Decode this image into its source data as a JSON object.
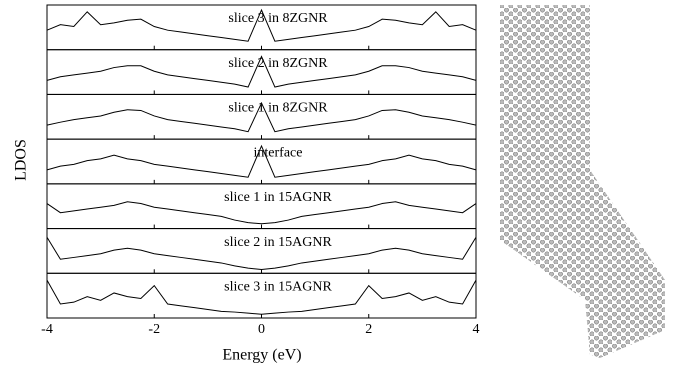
{
  "chart_data": {
    "type": "line",
    "xlabel": "Energy (eV)",
    "ylabel": "LDOS",
    "xlim": [
      -4,
      4
    ],
    "xticks": [
      -4,
      -2,
      0,
      2,
      4
    ],
    "ylim": [
      0,
      1
    ],
    "x": [
      -4,
      -3.75,
      -3.5,
      -3.25,
      -3,
      -2.75,
      -2.5,
      -2.25,
      -2,
      -1.75,
      -1.5,
      -1.25,
      -1,
      -0.75,
      -0.5,
      -0.25,
      0,
      0.25,
      0.5,
      0.75,
      1,
      1.25,
      1.5,
      1.75,
      2,
      2.25,
      2.5,
      2.75,
      3,
      3.25,
      3.5,
      3.75,
      4
    ],
    "series": [
      {
        "name": "slice 3 in 8ZGNR",
        "color": "#000000",
        "values": [
          0.45,
          0.6,
          0.55,
          0.95,
          0.6,
          0.65,
          0.72,
          0.75,
          0.55,
          0.45,
          0.4,
          0.35,
          0.3,
          0.25,
          0.2,
          0.15,
          1.0,
          0.15,
          0.2,
          0.25,
          0.3,
          0.35,
          0.4,
          0.45,
          0.55,
          0.75,
          0.72,
          0.65,
          0.6,
          0.95,
          0.55,
          0.6,
          0.45
        ]
      },
      {
        "name": "slice 2 in 8ZGNR",
        "color": "#000000",
        "values": [
          0.3,
          0.4,
          0.45,
          0.5,
          0.55,
          0.65,
          0.7,
          0.7,
          0.55,
          0.45,
          0.4,
          0.35,
          0.3,
          0.25,
          0.2,
          0.12,
          0.95,
          0.12,
          0.2,
          0.25,
          0.3,
          0.35,
          0.4,
          0.45,
          0.55,
          0.7,
          0.7,
          0.65,
          0.55,
          0.5,
          0.45,
          0.4,
          0.3
        ]
      },
      {
        "name": "slice 1 in 8ZGNR",
        "color": "#000000",
        "values": [
          0.3,
          0.38,
          0.45,
          0.5,
          0.55,
          0.65,
          0.72,
          0.7,
          0.55,
          0.45,
          0.4,
          0.35,
          0.3,
          0.25,
          0.2,
          0.12,
          0.9,
          0.12,
          0.2,
          0.25,
          0.3,
          0.35,
          0.4,
          0.45,
          0.55,
          0.7,
          0.72,
          0.65,
          0.55,
          0.5,
          0.45,
          0.38,
          0.3
        ]
      },
      {
        "name": "interface",
        "color": "#000000",
        "values": [
          0.3,
          0.4,
          0.45,
          0.55,
          0.6,
          0.7,
          0.6,
          0.55,
          0.45,
          0.4,
          0.35,
          0.3,
          0.25,
          0.2,
          0.15,
          0.1,
          0.95,
          0.1,
          0.15,
          0.2,
          0.25,
          0.3,
          0.35,
          0.4,
          0.45,
          0.55,
          0.6,
          0.7,
          0.6,
          0.55,
          0.45,
          0.4,
          0.3
        ]
      },
      {
        "name": "slice 1 in 15AGNR",
        "color": "#000000",
        "values": [
          0.6,
          0.35,
          0.4,
          0.45,
          0.5,
          0.55,
          0.65,
          0.6,
          0.5,
          0.45,
          0.4,
          0.35,
          0.3,
          0.25,
          0.15,
          0.08,
          0.05,
          0.08,
          0.15,
          0.25,
          0.3,
          0.35,
          0.4,
          0.45,
          0.5,
          0.6,
          0.65,
          0.55,
          0.5,
          0.45,
          0.4,
          0.35,
          0.6
        ]
      },
      {
        "name": "slice 2 in 15AGNR",
        "color": "#000000",
        "values": [
          0.9,
          0.3,
          0.35,
          0.4,
          0.45,
          0.55,
          0.6,
          0.55,
          0.45,
          0.4,
          0.35,
          0.3,
          0.25,
          0.2,
          0.12,
          0.06,
          0.02,
          0.06,
          0.12,
          0.2,
          0.25,
          0.3,
          0.35,
          0.4,
          0.45,
          0.55,
          0.6,
          0.55,
          0.45,
          0.4,
          0.35,
          0.3,
          0.9
        ]
      },
      {
        "name": "slice 3 in 15AGNR",
        "color": "#000000",
        "values": [
          0.95,
          0.3,
          0.35,
          0.5,
          0.4,
          0.6,
          0.5,
          0.45,
          0.8,
          0.3,
          0.25,
          0.2,
          0.15,
          0.1,
          0.08,
          0.05,
          0.02,
          0.05,
          0.08,
          0.1,
          0.15,
          0.2,
          0.25,
          0.3,
          0.8,
          0.45,
          0.5,
          0.6,
          0.4,
          0.5,
          0.35,
          0.3,
          0.95
        ]
      }
    ]
  }
}
